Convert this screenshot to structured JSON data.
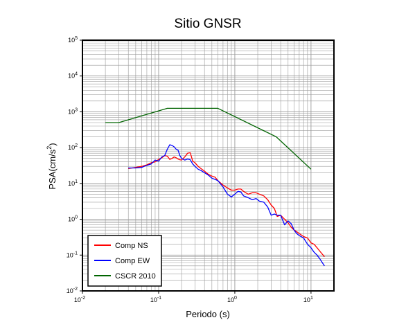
{
  "chart_data": {
    "type": "line",
    "title": "Sitio GNSR",
    "xlabel": "Periodo (s)",
    "ylabel_base": "PSA(cm/s",
    "ylabel_exp": "2",
    "ylabel_close": ")",
    "x_scale": "log",
    "y_scale": "log",
    "xlim": [
      0.01,
      20
    ],
    "ylim": [
      0.01,
      100000
    ],
    "grid": true,
    "legend_position": "bottom-left",
    "x_ticks": [
      {
        "value": 0.01,
        "base": "10",
        "exp": "-2"
      },
      {
        "value": 0.1,
        "base": "10",
        "exp": "-1"
      },
      {
        "value": 1,
        "base": "10",
        "exp": "0"
      },
      {
        "value": 10,
        "base": "10",
        "exp": "1"
      }
    ],
    "y_ticks": [
      {
        "value": 0.01,
        "base": "10",
        "exp": "-2"
      },
      {
        "value": 0.1,
        "base": "10",
        "exp": "-1"
      },
      {
        "value": 1,
        "base": "10",
        "exp": "0"
      },
      {
        "value": 10,
        "base": "10",
        "exp": "1"
      },
      {
        "value": 100,
        "base": "10",
        "exp": "2"
      },
      {
        "value": 1000,
        "base": "10",
        "exp": "3"
      },
      {
        "value": 10000,
        "base": "10",
        "exp": "4"
      },
      {
        "value": 100000,
        "base": "10",
        "exp": "5"
      }
    ],
    "series": [
      {
        "name": "Comp NS",
        "color": "#ff0000",
        "x": [
          0.04,
          0.05,
          0.06,
          0.07,
          0.08,
          0.09,
          0.1,
          0.11,
          0.12,
          0.13,
          0.14,
          0.15,
          0.16,
          0.17,
          0.18,
          0.19,
          0.2,
          0.22,
          0.24,
          0.26,
          0.27,
          0.28,
          0.3,
          0.33,
          0.36,
          0.4,
          0.45,
          0.5,
          0.55,
          0.6,
          0.7,
          0.8,
          0.9,
          1.0,
          1.1,
          1.2,
          1.3,
          1.5,
          1.7,
          1.9,
          2.1,
          2.4,
          2.7,
          3.0,
          3.3,
          3.6,
          4.0,
          4.5,
          5.0,
          5.5,
          6.0,
          6.5,
          7.0,
          8.0,
          9.0,
          10.0,
          11.0,
          12.0,
          13.0,
          15.0
        ],
        "y": [
          26,
          28,
          30,
          33,
          38,
          40,
          47,
          52,
          60,
          58,
          47,
          50,
          55,
          52,
          48,
          46,
          45,
          55,
          70,
          72,
          55,
          42,
          38,
          30,
          26,
          22,
          18,
          16,
          15,
          12,
          9,
          7.5,
          6.5,
          6.5,
          7.0,
          7.0,
          6.0,
          5.0,
          5.5,
          5.5,
          5.0,
          4.5,
          3.5,
          2.5,
          2.0,
          1.2,
          1.3,
          1.0,
          0.8,
          0.6,
          0.5,
          0.45,
          0.4,
          0.33,
          0.3,
          0.22,
          0.2,
          0.16,
          0.13,
          0.09
        ]
      },
      {
        "name": "Comp EW",
        "color": "#0000ff",
        "x": [
          0.04,
          0.05,
          0.06,
          0.07,
          0.08,
          0.09,
          0.1,
          0.11,
          0.12,
          0.13,
          0.14,
          0.15,
          0.16,
          0.17,
          0.18,
          0.19,
          0.2,
          0.22,
          0.24,
          0.26,
          0.28,
          0.3,
          0.33,
          0.36,
          0.4,
          0.45,
          0.5,
          0.55,
          0.6,
          0.7,
          0.8,
          0.9,
          1.0,
          1.1,
          1.2,
          1.3,
          1.5,
          1.7,
          1.9,
          2.1,
          2.4,
          2.7,
          3.0,
          3.3,
          3.6,
          4.0,
          4.5,
          5.0,
          5.5,
          6.0,
          6.5,
          7.0,
          8.0,
          9.0,
          10.0,
          11.0,
          12.0,
          13.0,
          15.0
        ],
        "y": [
          27,
          27,
          28,
          32,
          35,
          45,
          42,
          55,
          60,
          90,
          120,
          115,
          105,
          90,
          85,
          60,
          50,
          45,
          48,
          46,
          35,
          30,
          25,
          23,
          20,
          17,
          14,
          13,
          12,
          8,
          5,
          4.2,
          5,
          6,
          5.8,
          4.5,
          4.0,
          3.5,
          3.8,
          3.2,
          3.0,
          2.2,
          1.3,
          1.4,
          1.3,
          1.3,
          0.7,
          0.9,
          0.75,
          0.5,
          0.4,
          0.35,
          0.3,
          0.2,
          0.16,
          0.12,
          0.1,
          0.08,
          0.05
        ]
      },
      {
        "name": "CSCR 2010",
        "color": "#006400",
        "x": [
          0.02,
          0.03,
          0.13,
          0.6,
          3.5,
          10.0
        ],
        "y": [
          500,
          500,
          1250,
          1250,
          200,
          25
        ]
      }
    ]
  }
}
